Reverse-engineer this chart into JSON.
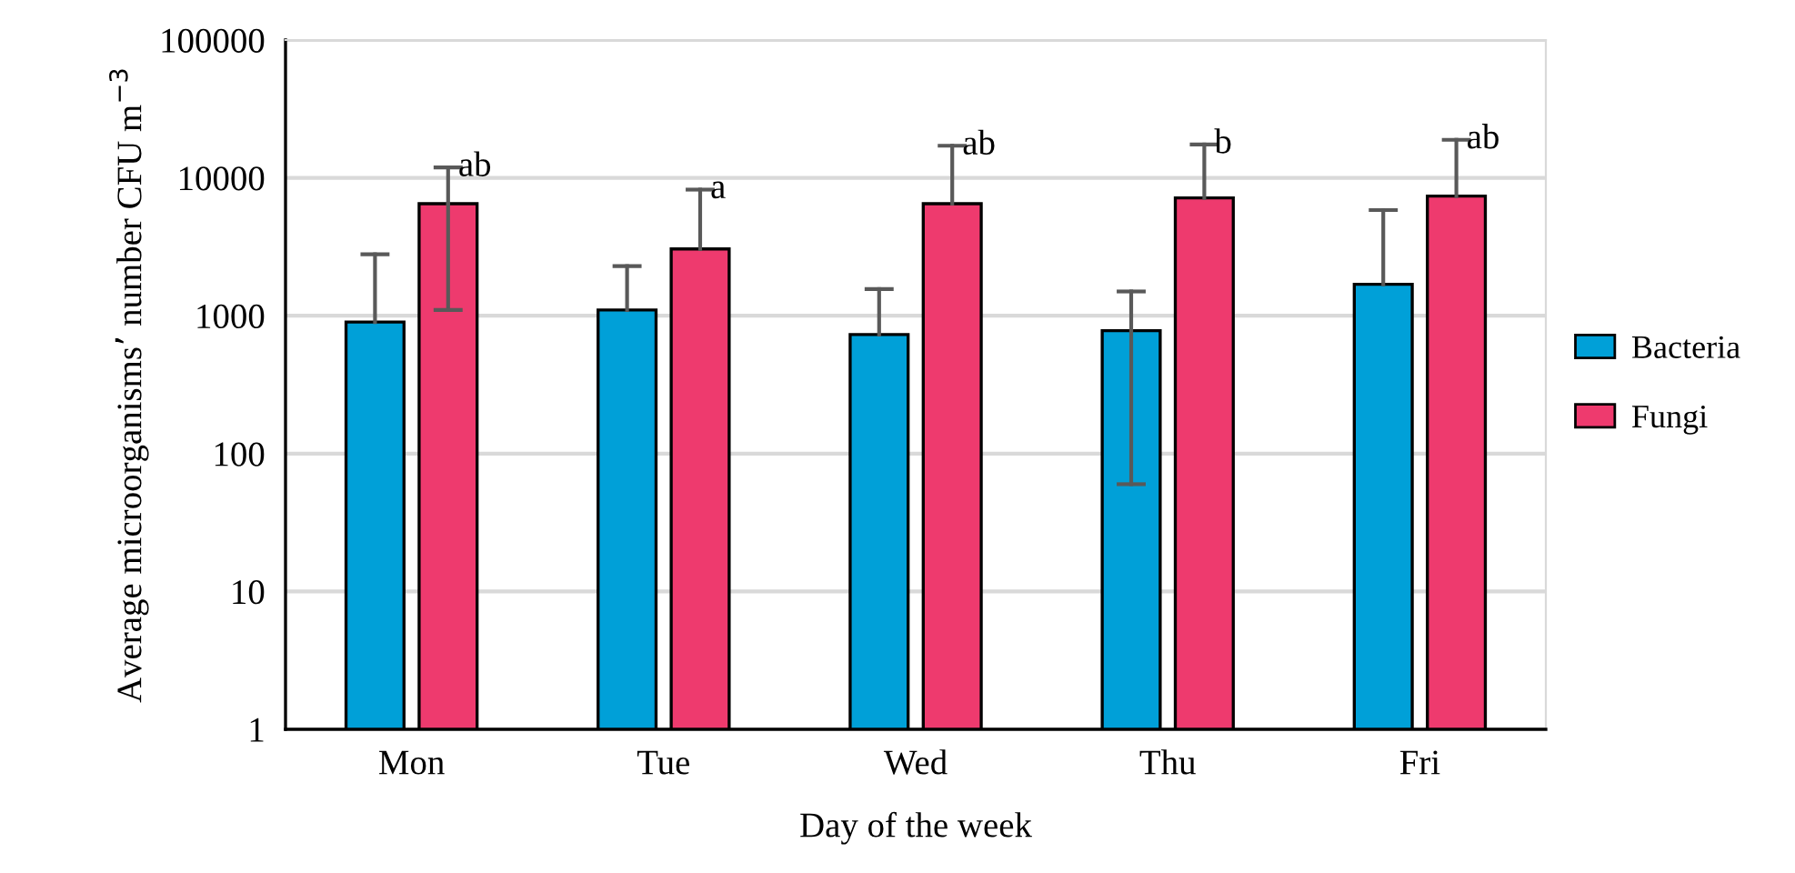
{
  "chart_data": {
    "type": "bar",
    "xlabel": "Day of the week",
    "ylabel": "Average microorganisms’ number CFU m$^{−3}$",
    "categories": [
      "Mon",
      "Tue",
      "Wed",
      "Thu",
      "Fri"
    ],
    "series": [
      {
        "name": "Bacteria",
        "color": "#00a0d8",
        "values": [
          900,
          1100,
          730,
          780,
          1690
        ],
        "errors": [
          1890,
          1190,
          830,
          720,
          4150
        ]
      },
      {
        "name": "Fungi",
        "color": "#ee3a6e",
        "values": [
          6500,
          3050,
          6500,
          7160,
          7380
        ],
        "errors": [
          5400,
          5170,
          10600,
          10300,
          11500
        ]
      }
    ],
    "log": "y",
    "ylim": [
      1,
      100000
    ],
    "yticks": [
      1,
      10,
      100,
      1000,
      10000,
      100000
    ],
    "grid": "y",
    "legend": "right",
    "annotations": [
      "ab",
      "a",
      "ab",
      "b",
      "ab"
    ]
  }
}
